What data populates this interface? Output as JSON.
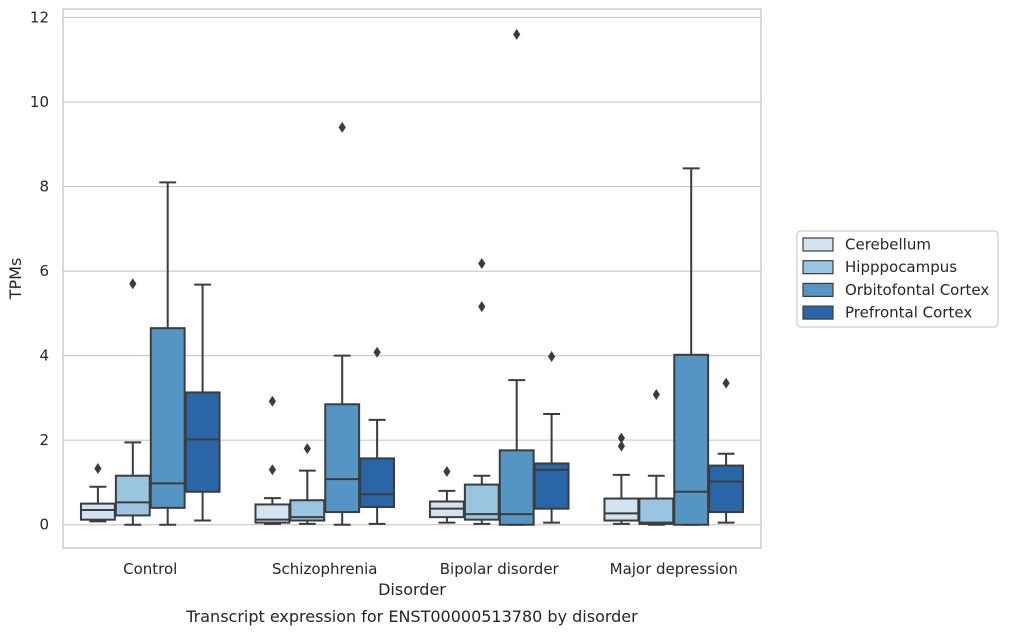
{
  "chart_data": {
    "type": "boxplot",
    "xlabel": "Disorder",
    "ylabel": "TPMs",
    "caption": "Transcript expression for ENST00000513780 by disorder",
    "ylim": [
      -0.55,
      12.2
    ],
    "yticks": [
      0,
      2,
      4,
      6,
      8,
      10,
      12
    ],
    "grid": "horizontal",
    "legend_position": "right",
    "categories": [
      "Control",
      "Schizophrenia",
      "Bipolar disorder",
      "Major depression"
    ],
    "series": [
      {
        "name": "Cerebellum",
        "color": "#d4e3f1",
        "boxes": [
          {
            "whislo": 0.08,
            "q1": 0.12,
            "med": 0.35,
            "q3": 0.5,
            "whishi": 0.9,
            "fliers": [
              1.33
            ]
          },
          {
            "whislo": 0.02,
            "q1": 0.05,
            "med": 0.12,
            "q3": 0.48,
            "whishi": 0.63,
            "fliers": [
              1.3,
              2.92
            ]
          },
          {
            "whislo": 0.05,
            "q1": 0.18,
            "med": 0.38,
            "q3": 0.55,
            "whishi": 0.8,
            "fliers": [
              1.26
            ]
          },
          {
            "whislo": 0.02,
            "q1": 0.1,
            "med": 0.27,
            "q3": 0.62,
            "whishi": 1.18,
            "fliers": [
              1.86,
              2.05
            ]
          }
        ]
      },
      {
        "name": "Hipppocampus",
        "color": "#9ac5e0",
        "boxes": [
          {
            "whislo": 0.0,
            "q1": 0.22,
            "med": 0.53,
            "q3": 1.16,
            "whishi": 1.95,
            "fliers": [
              5.7
            ]
          },
          {
            "whislo": 0.02,
            "q1": 0.1,
            "med": 0.18,
            "q3": 0.58,
            "whishi": 1.28,
            "fliers": [
              1.8
            ]
          },
          {
            "whislo": 0.02,
            "q1": 0.12,
            "med": 0.25,
            "q3": 0.95,
            "whishi": 1.16,
            "fliers": [
              6.18,
              5.16
            ]
          },
          {
            "whislo": 0.0,
            "q1": 0.02,
            "med": 0.05,
            "q3": 0.62,
            "whishi": 1.16,
            "fliers": [
              3.08
            ]
          }
        ]
      },
      {
        "name": "Orbitofontal Cortex",
        "color": "#5495c4",
        "boxes": [
          {
            "whislo": 0.0,
            "q1": 0.4,
            "med": 0.98,
            "q3": 4.65,
            "whishi": 8.1,
            "fliers": []
          },
          {
            "whislo": 0.0,
            "q1": 0.3,
            "med": 1.08,
            "q3": 2.85,
            "whishi": 4.0,
            "fliers": [
              9.4
            ]
          },
          {
            "whislo": 0.0,
            "q1": 0.0,
            "med": 0.25,
            "q3": 1.76,
            "whishi": 3.42,
            "fliers": [
              11.6
            ]
          },
          {
            "whislo": 0.0,
            "q1": 0.0,
            "med": 0.78,
            "q3": 4.02,
            "whishi": 8.43,
            "fliers": []
          }
        ]
      },
      {
        "name": "Prefrontal Cortex",
        "color": "#2a66a7",
        "boxes": [
          {
            "whislo": 0.1,
            "q1": 0.78,
            "med": 2.02,
            "q3": 3.13,
            "whishi": 5.68,
            "fliers": []
          },
          {
            "whislo": 0.02,
            "q1": 0.42,
            "med": 0.72,
            "q3": 1.57,
            "whishi": 2.48,
            "fliers": [
              4.08
            ]
          },
          {
            "whislo": 0.05,
            "q1": 0.38,
            "med": 1.3,
            "q3": 1.45,
            "whishi": 2.62,
            "fliers": [
              3.98
            ]
          },
          {
            "whislo": 0.05,
            "q1": 0.3,
            "med": 1.02,
            "q3": 1.4,
            "whishi": 1.68,
            "fliers": [
              3.35
            ]
          }
        ]
      }
    ]
  }
}
